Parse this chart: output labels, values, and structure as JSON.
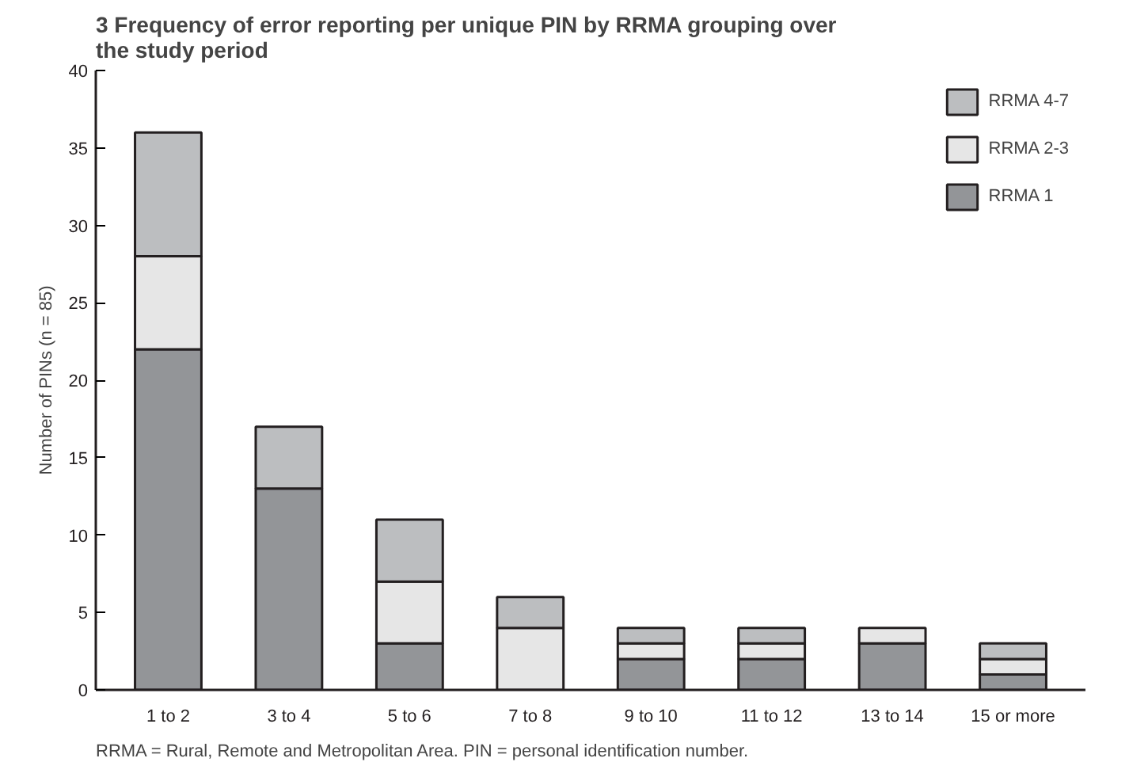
{
  "chart_data": {
    "type": "bar",
    "stacked": true,
    "title": "3  Frequency of error reporting per unique PIN by RRMA grouping over the study period",
    "ylabel": "Number of PINs (n = 85)",
    "categories": [
      "1 to 2",
      "3 to 4",
      "5 to 6",
      "7 to 8",
      "9 to 10",
      "11 to 12",
      "13 to 14",
      "15 or more"
    ],
    "series": [
      {
        "name": "RRMA 1",
        "color": "#939598",
        "values": [
          22,
          13,
          3,
          0,
          2,
          2,
          3,
          1
        ]
      },
      {
        "name": "RRMA 2-3",
        "color": "#e6e6e6",
        "values": [
          6,
          0,
          4,
          4,
          1,
          1,
          1,
          1
        ]
      },
      {
        "name": "RRMA 4-7",
        "color": "#bcbec0",
        "values": [
          8,
          4,
          4,
          2,
          1,
          1,
          0,
          1
        ]
      }
    ],
    "ylim": [
      0,
      40
    ],
    "yticks": [
      0,
      5,
      10,
      15,
      20,
      25,
      30,
      35,
      40
    ],
    "grid": false,
    "legend": "top right",
    "annotations": [
      "RRMA = Rural, Remote and Metropolitan Area. PIN = personal identification number."
    ]
  }
}
